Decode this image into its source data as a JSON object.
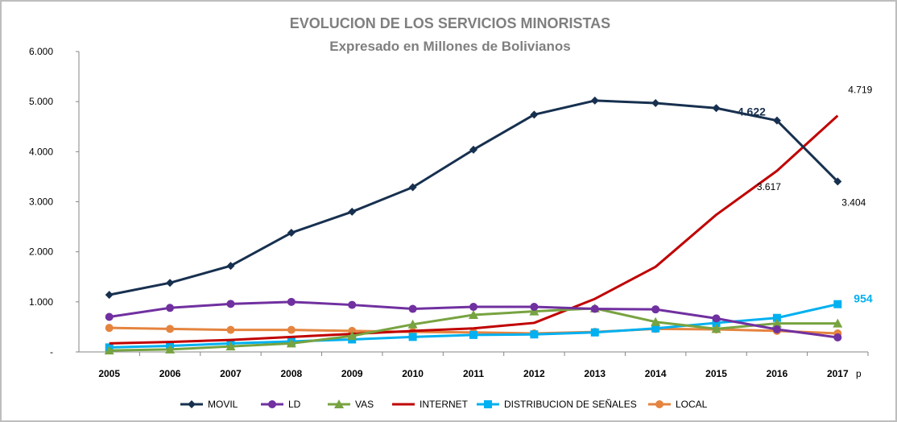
{
  "chart_data": {
    "type": "line",
    "title": "EVOLUCION DE LOS SERVICIOS MINORISTAS",
    "subtitle": "Expresado en Millones de Bolivianos",
    "categories": [
      "2005",
      "2006",
      "2007",
      "2008",
      "2009",
      "2010",
      "2011",
      "2012",
      "2013",
      "2014",
      "2015",
      "2016",
      "2017"
    ],
    "x_suffix": "p",
    "ylim": [
      0,
      6000
    ],
    "yticks": [
      0,
      1000,
      2000,
      3000,
      4000,
      5000,
      6000
    ],
    "ytick_labels": [
      "-",
      "1.000",
      "2.000",
      "3.000",
      "4.000",
      "5.000",
      "6.000"
    ],
    "series": [
      {
        "name": "MOVIL",
        "color": "#17304f",
        "marker": "diamond",
        "values": [
          1140,
          1380,
          1720,
          2380,
          2800,
          3290,
          4040,
          4740,
          5020,
          4970,
          4870,
          4622,
          3404
        ]
      },
      {
        "name": "LD",
        "color": "#7030a0",
        "marker": "circle",
        "values": [
          700,
          880,
          960,
          1000,
          940,
          860,
          900,
          900,
          860,
          850,
          670,
          450,
          290
        ]
      },
      {
        "name": "VAS",
        "color": "#77a340",
        "marker": "triangle",
        "values": [
          30,
          50,
          110,
          170,
          320,
          550,
          740,
          810,
          870,
          600,
          460,
          570,
          570
        ]
      },
      {
        "name": "INTERNET",
        "color": "#c00000",
        "marker": "none",
        "values": [
          170,
          200,
          240,
          300,
          360,
          420,
          470,
          580,
          1060,
          1700,
          2740,
          3617,
          4719
        ]
      },
      {
        "name": "DISTRIBUCION  DE SEÑALES",
        "color": "#00b0f0",
        "marker": "square",
        "values": [
          90,
          120,
          170,
          210,
          250,
          300,
          340,
          350,
          390,
          470,
          580,
          680,
          954
        ]
      },
      {
        "name": "LOCAL",
        "color": "#e5843f",
        "marker": "circle",
        "values": [
          480,
          460,
          440,
          440,
          420,
          400,
          390,
          370,
          400,
          460,
          450,
          420,
          370
        ]
      }
    ],
    "annotations": [
      {
        "text": "4.719",
        "series": "INTERNET",
        "category": "2017",
        "style": "normal"
      },
      {
        "text": "4.622",
        "series": "MOVIL",
        "category": "2016",
        "style": "bold",
        "color": "#17304f"
      },
      {
        "text": "3.617",
        "series": "INTERNET",
        "category": "2016",
        "style": "normal"
      },
      {
        "text": "3.404",
        "series": "MOVIL",
        "category": "2017",
        "style": "normal"
      },
      {
        "text": "954",
        "series": "DISTRIBUCION  DE SEÑALES",
        "category": "2017",
        "style": "bold",
        "color": "#00b0f0"
      }
    ],
    "legend_position": "bottom",
    "grid": false
  }
}
